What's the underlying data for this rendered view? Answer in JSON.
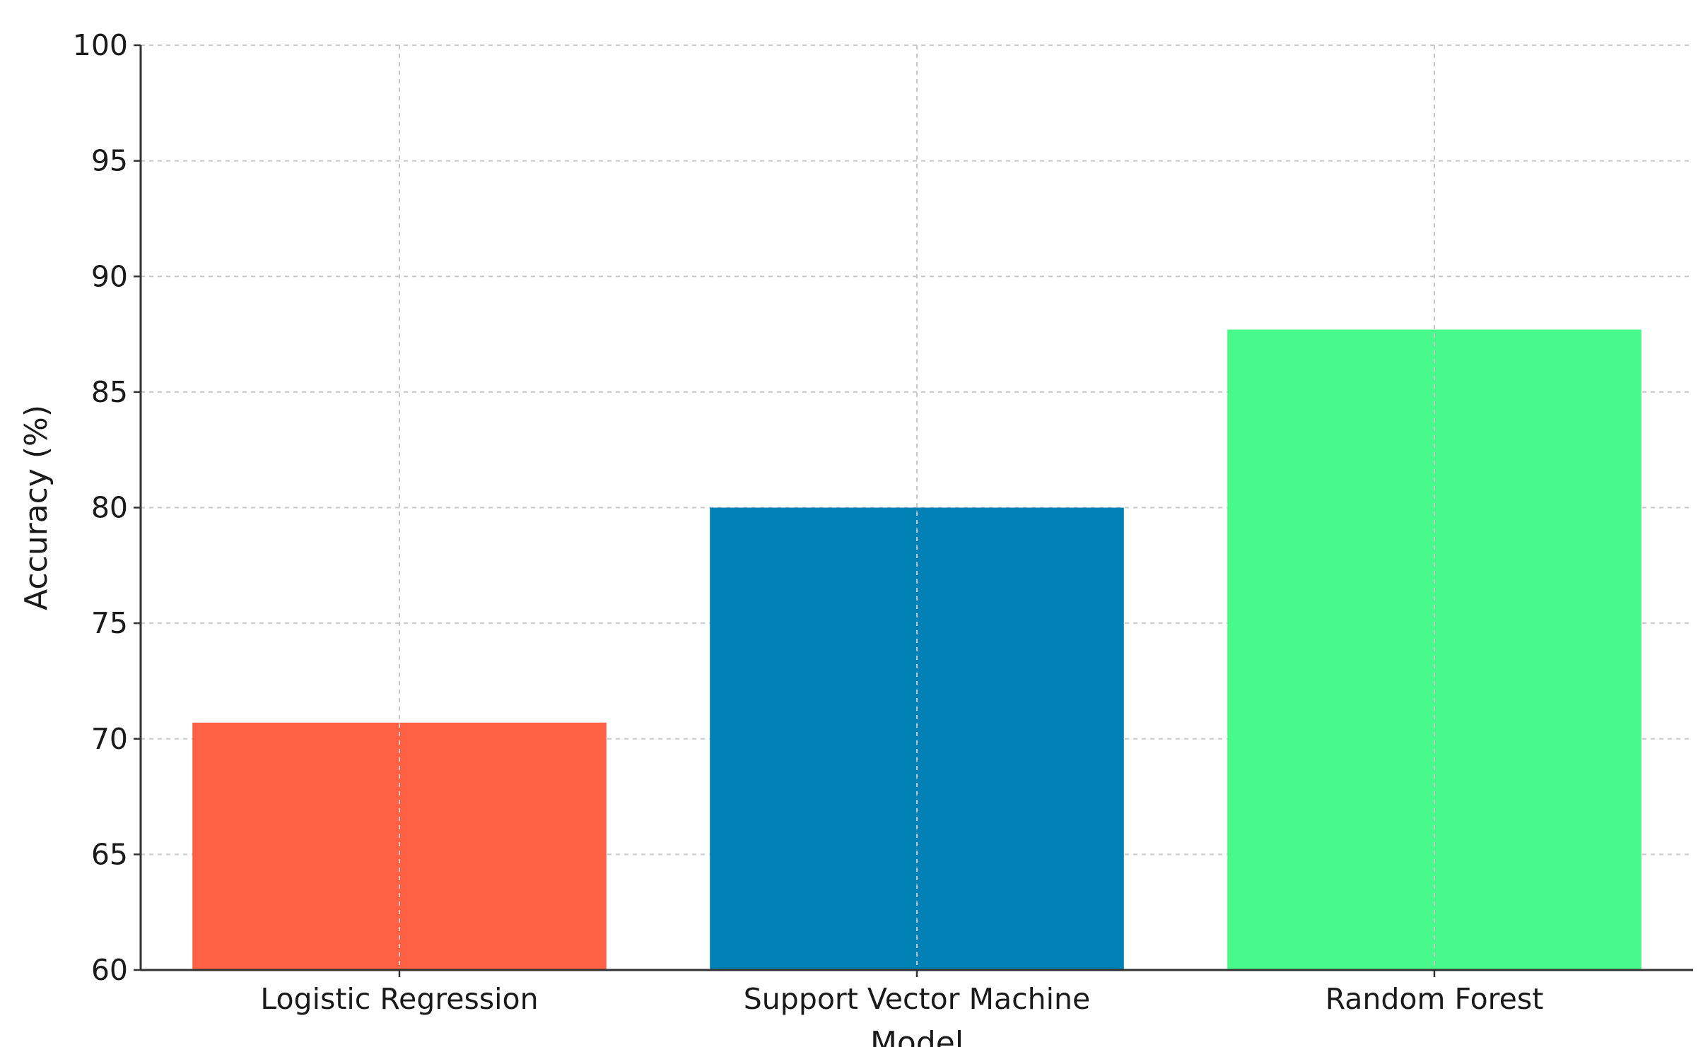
{
  "chart_data": {
    "type": "bar",
    "title": "",
    "xlabel": "Model",
    "ylabel": "Accuracy (%)",
    "categories": [
      "Logistic Regression",
      "Support Vector Machine",
      "Random Forest"
    ],
    "values": [
      70.7,
      80.0,
      87.7
    ],
    "colors": [
      "#ff6145",
      "#0081b6",
      "#48fa8c"
    ],
    "ylim": [
      60,
      100
    ],
    "yticks": [
      60,
      65,
      70,
      75,
      80,
      85,
      90,
      95,
      100
    ],
    "grid": true,
    "legend": "none"
  }
}
